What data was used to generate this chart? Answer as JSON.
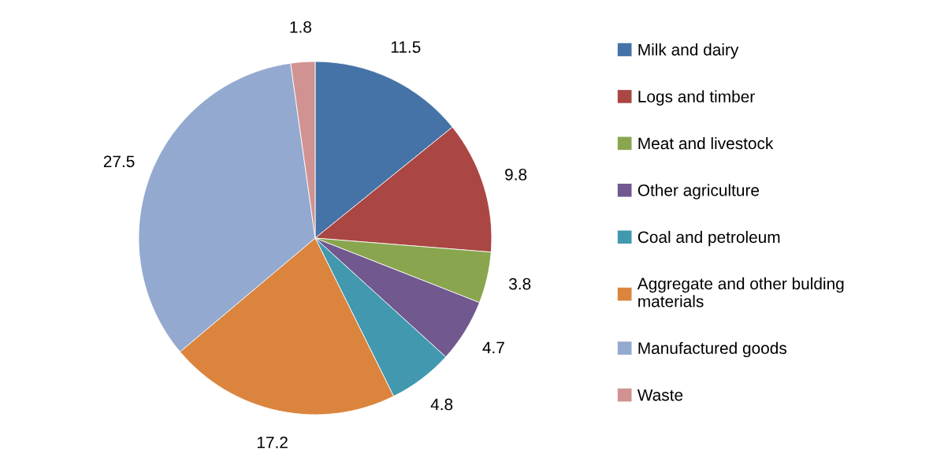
{
  "chart_data": {
    "type": "pie",
    "categories": [
      "Milk and dairy",
      "Logs and timber",
      "Meat and livestock",
      "Other agriculture",
      "Coal and petroleum",
      "Aggregate and other bulding\nmaterials",
      "Manufactured goods",
      "Waste"
    ],
    "values": [
      11.5,
      9.8,
      3.8,
      4.7,
      4.8,
      17.2,
      27.5,
      1.8
    ],
    "colors": [
      "#4572a7",
      "#aa4643",
      "#89a54e",
      "#71588f",
      "#4198af",
      "#db843d",
      "#93a9cf",
      "#d19392"
    ],
    "data_labels": true,
    "legend": "right"
  }
}
